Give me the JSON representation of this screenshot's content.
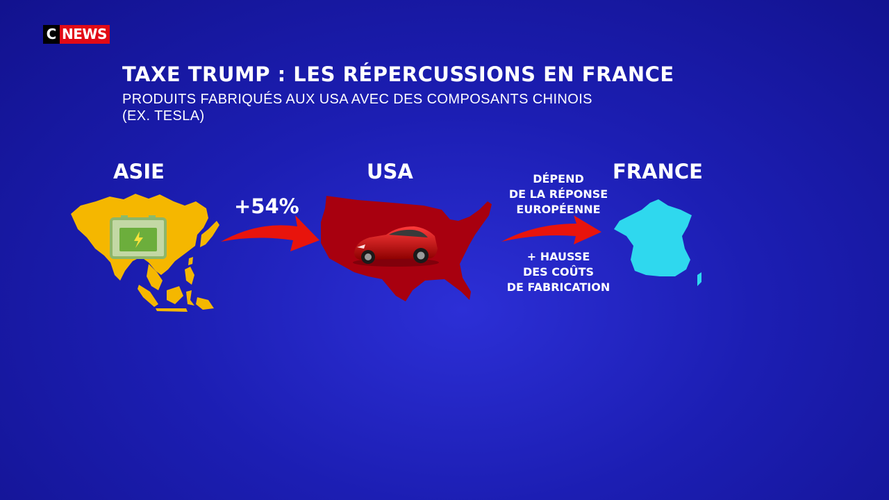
{
  "brand": {
    "logo_c": "C",
    "logo_news": "NEWS",
    "red": "#e20a16"
  },
  "headline": {
    "title": "TAXE TRUMP : LES RÉPERCUSSIONS EN FRANCE",
    "subtitle_line1": "PRODUITS FABRIQUÉS AUX USA AVEC DES COMPOSANTS CHINOIS",
    "subtitle_line2": "(EX. TESLA)"
  },
  "regions": {
    "asia": {
      "label": "ASIE",
      "color": "#f5b700",
      "icon": "battery-icon"
    },
    "usa": {
      "label": "USA",
      "color": "#a8000f",
      "icon": "car-icon"
    },
    "france": {
      "label": "FRANCE",
      "color": "#2fd8ee"
    }
  },
  "flows": {
    "asia_to_usa": {
      "label": "+54%"
    },
    "usa_to_france": {
      "above_line1": "DÉPEND",
      "above_line2": "DE LA RÉPONSE",
      "above_line3": "EUROPÉENNE",
      "below_line1": "+ HAUSSE",
      "below_line2": "DES COÛTS",
      "below_line3": "DE FABRICATION"
    }
  },
  "colors": {
    "background": "#1c1eb3",
    "arrow": "#e8140c"
  }
}
